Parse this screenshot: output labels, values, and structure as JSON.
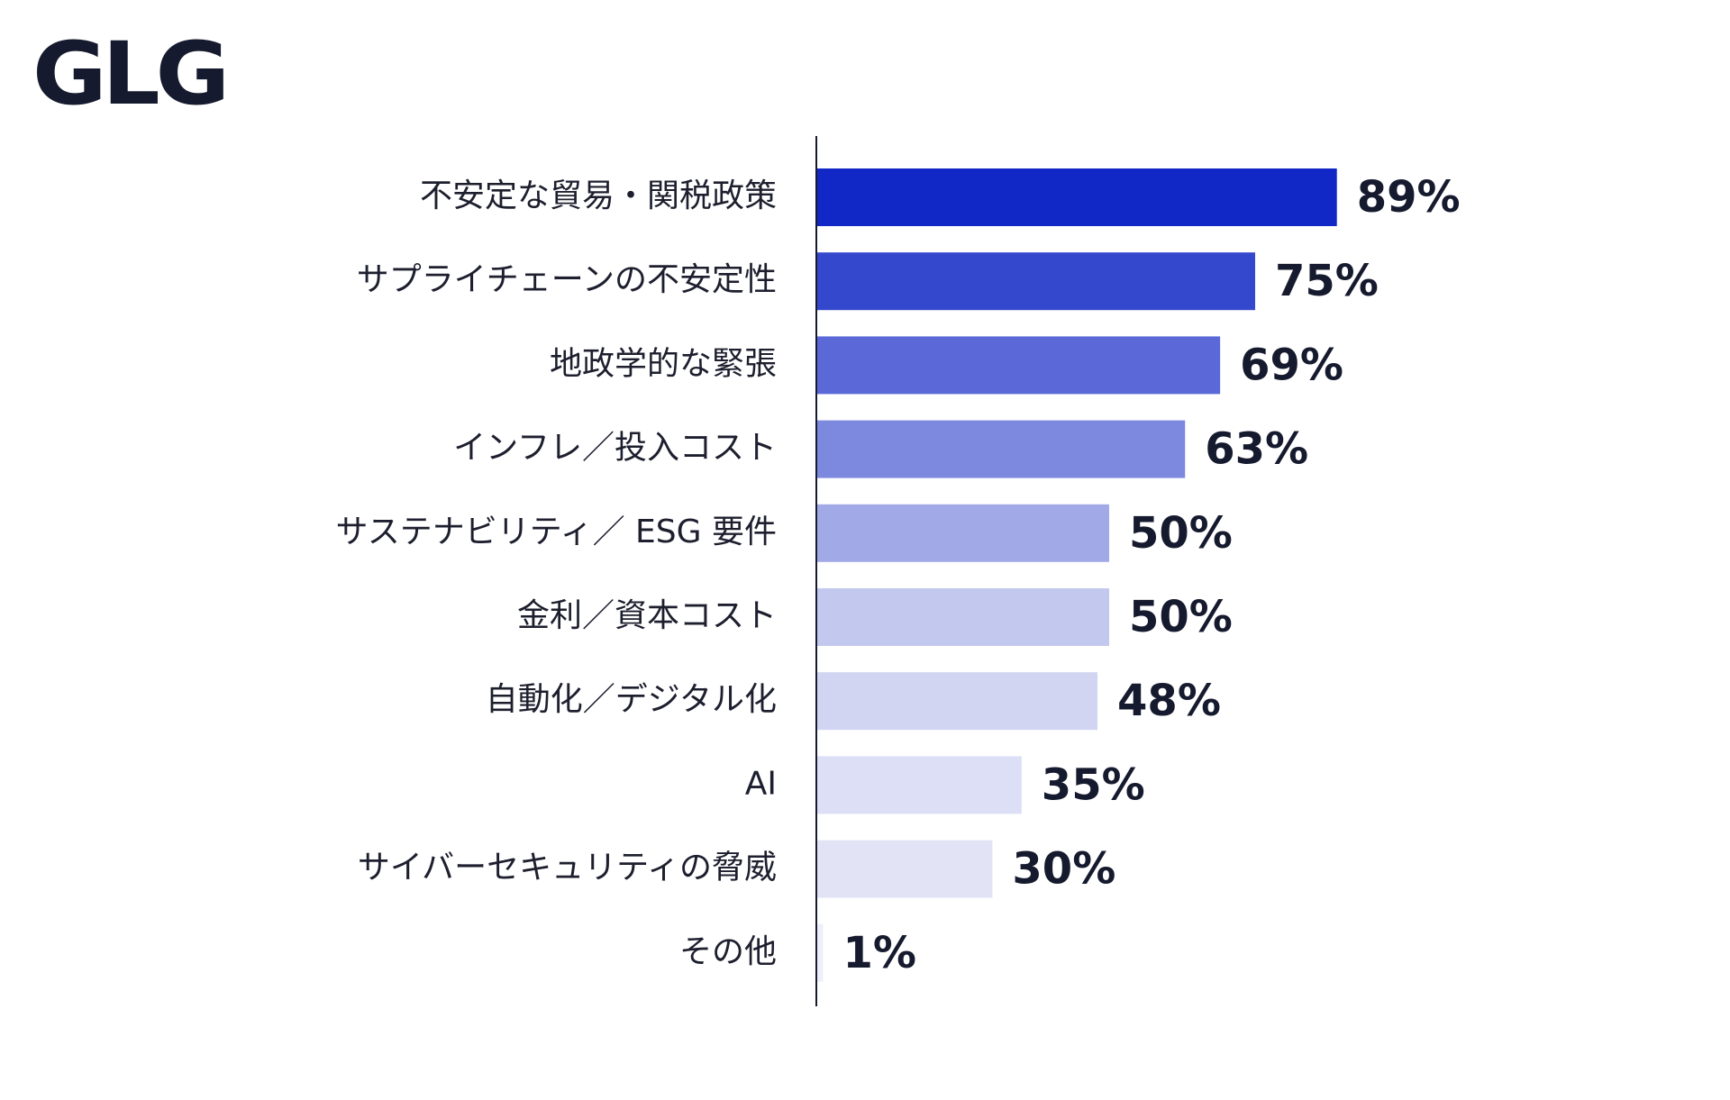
{
  "logo": {
    "text": "GLG"
  },
  "chart_data": {
    "type": "bar",
    "orientation": "horizontal",
    "title": "",
    "xlabel": "",
    "ylabel": "",
    "xlim": [
      0,
      100
    ],
    "grid": false,
    "legend": "none",
    "categories": [
      "不安定な貿易・関税政策",
      "サプライチェーンの不安定性",
      "地政学的な緊張",
      "インフレ／投入コスト",
      "サステナビリティ／ ESG 要件",
      "金利／資本コスト",
      "自動化／デジタル化",
      "AI",
      "サイバーセキュリティの脅威",
      "その他"
    ],
    "values": [
      89,
      75,
      69,
      63,
      50,
      50,
      48,
      35,
      30,
      1
    ],
    "value_labels": [
      "89%",
      "75%",
      "69%",
      "63%",
      "50%",
      "50%",
      "48%",
      "35%",
      "30%",
      "1%"
    ],
    "bar_colors": [
      "#1128c6",
      "#3448cd",
      "#5a69d7",
      "#7d89df",
      "#a1aae6",
      "#c3c8ee",
      "#d1d5f2",
      "#dcdff5",
      "#e2e4f6",
      "#eef0f9"
    ]
  }
}
